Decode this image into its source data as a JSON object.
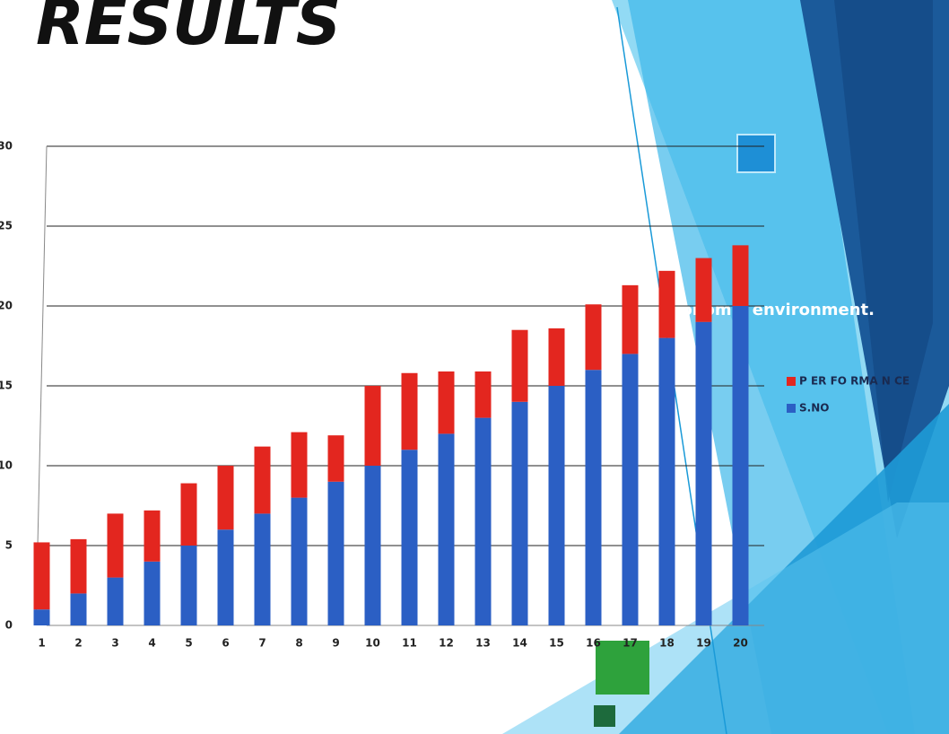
{
  "chart_data": {
    "type": "stacked_bar",
    "title": "RESULTS",
    "annotation": "economic environment.",
    "categories": [
      "1",
      "2",
      "3",
      "4",
      "5",
      "6",
      "7",
      "8",
      "9",
      "10",
      "11",
      "12",
      "13",
      "14",
      "15",
      "16",
      "17",
      "18",
      "19",
      "20"
    ],
    "series": [
      {
        "name": "P ER FO RMA N CE",
        "color": "#e3261f",
        "values": [
          4.2,
          3.4,
          4,
          3.2,
          3.9,
          4,
          4.2,
          4.1,
          2.9,
          5,
          4.8,
          3.9,
          2.9,
          4.5,
          3.6,
          4.1,
          4.3,
          4.2,
          4,
          3.8
        ]
      },
      {
        "name": "S.NO",
        "color": "#2b5fc4",
        "values": [
          1,
          2,
          3,
          4,
          5,
          6,
          7,
          8,
          9,
          10,
          11,
          12,
          13,
          14,
          15,
          16,
          17,
          18,
          19,
          20
        ]
      }
    ],
    "ylim": [
      0,
      30
    ],
    "yticks": [
      0,
      5,
      10,
      15,
      20,
      25,
      30
    ],
    "grid": true,
    "legend": "right"
  }
}
